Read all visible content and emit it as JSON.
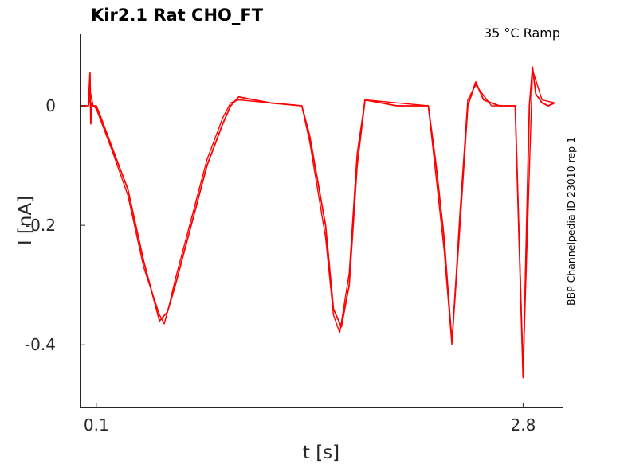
{
  "chart_data": {
    "type": "line",
    "title": "Kir2.1  Rat  CHO_FT",
    "annotation": "35 °C  Ramp",
    "side_label": "BBP Channelpedia ID 23010 rep 1",
    "xlabel": "t [s]",
    "ylabel": "I [nA]",
    "xlim": [
      0.0,
      3.05
    ],
    "ylim": [
      -0.505,
      0.12
    ],
    "x_ticks": [
      0.1,
      2.8
    ],
    "x_tick_labels": [
      "0.1",
      "2.8"
    ],
    "y_ticks": [
      0,
      -0.2,
      -0.4
    ],
    "y_tick_labels": [
      "0",
      "-0.2",
      "-0.4"
    ],
    "grid": false,
    "color": "#ff0000",
    "series": [
      {
        "x": [
          0.0,
          0.03,
          0.05,
          0.06,
          0.065,
          0.07,
          0.08,
          0.1,
          0.13,
          0.2,
          0.3,
          0.4,
          0.5,
          0.55,
          0.6,
          0.7,
          0.8,
          0.9,
          0.95,
          1.0,
          1.2,
          1.4,
          1.45,
          1.55,
          1.6,
          1.65,
          1.7,
          1.75,
          1.8,
          1.9,
          2.0,
          2.1,
          2.2,
          2.25,
          2.3,
          2.35,
          2.4,
          2.45,
          2.5,
          2.55,
          2.6,
          2.65,
          2.72,
          2.75,
          2.8,
          2.84,
          2.86,
          2.88,
          2.92,
          2.96,
          3.0
        ],
        "y": [
          0.0,
          0.0,
          0.0,
          0.055,
          -0.03,
          0.005,
          0.0,
          0.0,
          -0.02,
          -0.07,
          -0.14,
          -0.26,
          -0.36,
          -0.345,
          -0.3,
          -0.2,
          -0.1,
          -0.03,
          0.0,
          0.015,
          0.005,
          0.0,
          -0.05,
          -0.2,
          -0.34,
          -0.37,
          -0.3,
          -0.1,
          0.01,
          0.005,
          0.0,
          0.0,
          0.0,
          -0.1,
          -0.22,
          -0.395,
          -0.2,
          0.0,
          0.04,
          0.01,
          0.005,
          0.0,
          0.0,
          0.0,
          -0.455,
          0.0,
          0.065,
          0.02,
          0.005,
          0.0,
          0.005
        ]
      },
      {
        "x": [
          0.0,
          0.05,
          0.065,
          0.08,
          0.1,
          0.2,
          0.3,
          0.4,
          0.5,
          0.53,
          0.56,
          0.6,
          0.7,
          0.8,
          0.9,
          0.95,
          1.0,
          1.4,
          1.45,
          1.55,
          1.6,
          1.64,
          1.7,
          1.75,
          1.8,
          2.2,
          2.3,
          2.35,
          2.4,
          2.45,
          2.5,
          2.6,
          2.75,
          2.8,
          2.86,
          2.92,
          3.0
        ],
        "y": [
          0.0,
          0.0,
          0.02,
          0.0,
          -0.005,
          -0.075,
          -0.15,
          -0.27,
          -0.35,
          -0.365,
          -0.335,
          -0.29,
          -0.19,
          -0.09,
          -0.02,
          0.005,
          0.01,
          0.0,
          -0.06,
          -0.22,
          -0.35,
          -0.38,
          -0.28,
          -0.08,
          0.01,
          0.0,
          -0.24,
          -0.4,
          -0.18,
          0.01,
          0.035,
          0.0,
          0.0,
          -0.44,
          0.06,
          0.01,
          0.005
        ]
      }
    ]
  }
}
